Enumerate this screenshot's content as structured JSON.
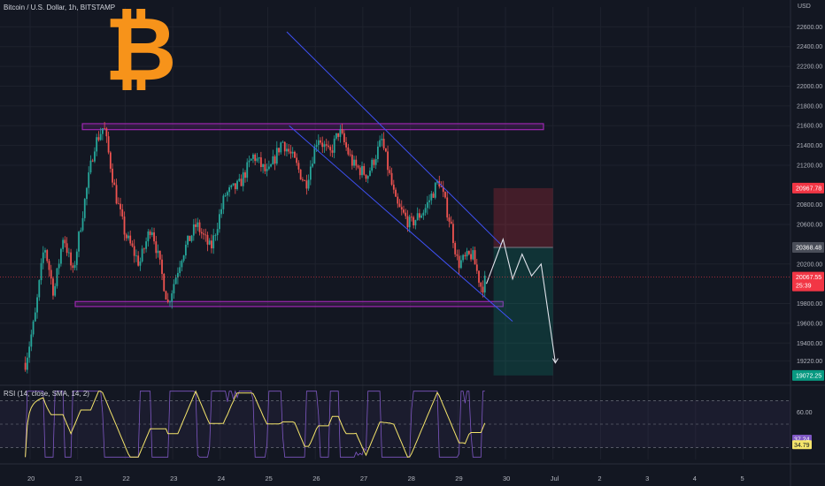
{
  "header": {
    "title": "Bitcoin / U.S. Dollar, 1h, BITSTAMP",
    "currency": "USD",
    "logo_glyph": "₿"
  },
  "rsi_panel": {
    "title": "RSI (14, close, SMA, 14, 2)",
    "ticks": [
      60.0
    ],
    "upper_band": 70,
    "lower_band": 30,
    "rsi_badge": "37.24",
    "sma_badge": "34.79",
    "rsi_color": "#7e57c2",
    "sma_color": "#f5e56b"
  },
  "colors": {
    "background": "#131722",
    "up": "#26a69a",
    "down": "#ef5350",
    "zone": "#9c27b0",
    "channel": "#3f51f5",
    "forecast": "#e0e3eb",
    "logo": "#f7931a"
  },
  "chart_data": {
    "type": "candlestick",
    "title": "Bitcoin / U.S. Dollar, 1h, BITSTAMP",
    "ylabel": "USD",
    "ylim": [
      19000,
      22800
    ],
    "y_ticks": [
      22600,
      22400,
      22200,
      22000,
      21800,
      21600,
      21400,
      21200,
      20800,
      20600,
      20200,
      19800,
      19600,
      19400,
      19220
    ],
    "x_ticks": [
      "20",
      "21",
      "22",
      "23",
      "24",
      "25",
      "26",
      "27",
      "28",
      "29",
      "30",
      "Jul",
      "2",
      "3",
      "4",
      "5"
    ],
    "price_anchors": [
      {
        "day": 19.9,
        "price": 19200
      },
      {
        "day": 20.1,
        "price": 19650
      },
      {
        "day": 20.3,
        "price": 20400
      },
      {
        "day": 20.5,
        "price": 19900
      },
      {
        "day": 20.7,
        "price": 20500
      },
      {
        "day": 20.9,
        "price": 20100
      },
      {
        "day": 21.1,
        "price": 20700
      },
      {
        "day": 21.35,
        "price": 21400
      },
      {
        "day": 21.55,
        "price": 21600
      },
      {
        "day": 21.8,
        "price": 20900
      },
      {
        "day": 22.0,
        "price": 20500
      },
      {
        "day": 22.3,
        "price": 20200
      },
      {
        "day": 22.55,
        "price": 20600
      },
      {
        "day": 22.9,
        "price": 19800
      },
      {
        "day": 23.2,
        "price": 20300
      },
      {
        "day": 23.5,
        "price": 20600
      },
      {
        "day": 23.8,
        "price": 20350
      },
      {
        "day": 24.1,
        "price": 20900
      },
      {
        "day": 24.4,
        "price": 21000
      },
      {
        "day": 24.7,
        "price": 21300
      },
      {
        "day": 25.0,
        "price": 21100
      },
      {
        "day": 25.3,
        "price": 21450
      },
      {
        "day": 25.55,
        "price": 21250
      },
      {
        "day": 25.8,
        "price": 21000
      },
      {
        "day": 26.05,
        "price": 21500
      },
      {
        "day": 26.3,
        "price": 21300
      },
      {
        "day": 26.5,
        "price": 21550
      },
      {
        "day": 26.8,
        "price": 21200
      },
      {
        "day": 27.1,
        "price": 21100
      },
      {
        "day": 27.4,
        "price": 21450
      },
      {
        "day": 27.7,
        "price": 20800
      },
      {
        "day": 28.0,
        "price": 20600
      },
      {
        "day": 28.3,
        "price": 20750
      },
      {
        "day": 28.6,
        "price": 21050
      },
      {
        "day": 28.85,
        "price": 20600
      },
      {
        "day": 29.0,
        "price": 20200
      },
      {
        "day": 29.3,
        "price": 20300
      },
      {
        "day": 29.5,
        "price": 19950
      },
      {
        "day": 29.6,
        "price": 20067.55
      }
    ],
    "support_zone": {
      "from_day": 20.95,
      "to_day": 29.95,
      "low": 19770,
      "high": 19820
    },
    "resistance_zone": {
      "from_day": 21.1,
      "to_day": 30.8,
      "low": 21560,
      "high": 21620
    },
    "descending_channel": {
      "upper": [
        {
          "day": 25.4,
          "price": 22550
        },
        {
          "day": 29.9,
          "price": 20400
        }
      ],
      "lower": [
        {
          "day": 25.45,
          "price": 21600
        },
        {
          "day": 30.15,
          "price": 19620
        }
      ]
    },
    "position": {
      "from_day": 29.75,
      "to_day": 31.0,
      "stop": 20967.78,
      "entry": 20368.48,
      "target": 19072.25
    },
    "forecast_path": [
      {
        "day": 29.6,
        "price": 20000
      },
      {
        "day": 29.95,
        "price": 20450
      },
      {
        "day": 30.15,
        "price": 20050
      },
      {
        "day": 30.35,
        "price": 20300
      },
      {
        "day": 30.55,
        "price": 20080
      },
      {
        "day": 30.75,
        "price": 20200
      },
      {
        "day": 31.05,
        "price": 19200
      }
    ],
    "last_price": 20067.55,
    "last_price_countdown": "25:39",
    "price_badges": [
      {
        "label": "20967.78",
        "color": "#f23645"
      },
      {
        "label": "20368.48",
        "color": "#4a4e59"
      },
      {
        "label": "20067.55",
        "color": "#f23645"
      },
      {
        "label": "19072.25",
        "color": "#089981"
      }
    ]
  }
}
